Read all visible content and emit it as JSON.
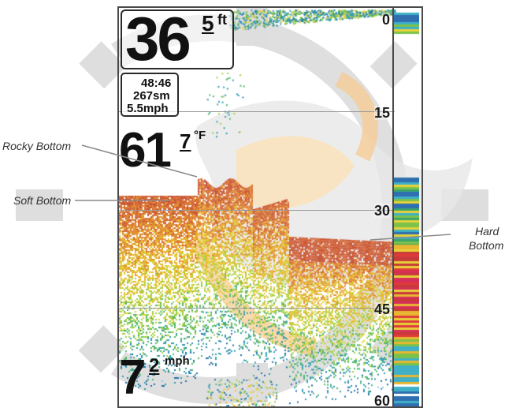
{
  "watermark": {
    "logo_name": "humminbird-fish-watermark",
    "colors": {
      "gray": "#d6d6d6",
      "orange": "#fad9a5"
    }
  },
  "screen": {
    "depth": {
      "value": "36",
      "tenth": "5",
      "unit": "ft"
    },
    "info": {
      "time": "48:46",
      "distance": "267sm",
      "speed": "5.5mph"
    },
    "temperature": {
      "value": "61",
      "tenth": "7",
      "unit": "°F"
    },
    "speed": {
      "value": "7",
      "tenth": "2",
      "unit": "mph"
    },
    "depth_scale": [
      "0",
      "15",
      "30",
      "45",
      "60"
    ],
    "colors": {
      "border": "#4a4a4a",
      "text": "#111111",
      "grid": "#9a9a9a"
    }
  },
  "callouts": {
    "rocky_bottom": "Rocky Bottom",
    "soft_bottom": "Soft Bottom",
    "hard_bottom_line1": "Hard",
    "hard_bottom_line2": "Bottom"
  }
}
